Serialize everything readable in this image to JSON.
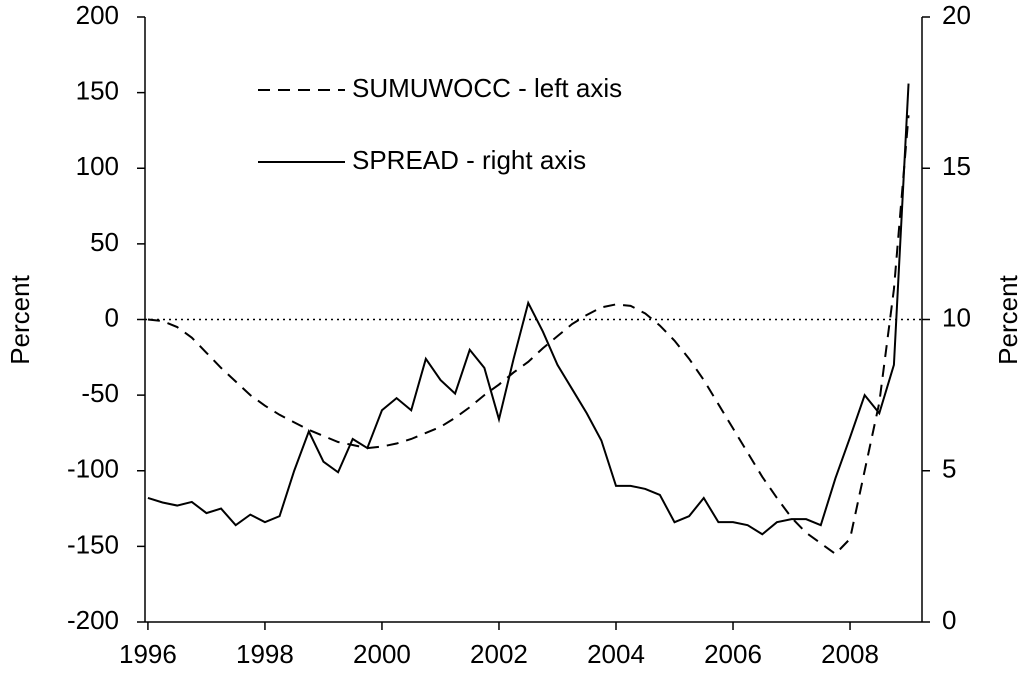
{
  "chart_data": {
    "type": "line",
    "x": [
      1996,
      1996.25,
      1996.5,
      1996.75,
      1997,
      1997.25,
      1997.5,
      1997.75,
      1998,
      1998.25,
      1998.5,
      1998.75,
      1999,
      1999.25,
      1999.5,
      1999.75,
      2000,
      2000.25,
      2000.5,
      2000.75,
      2001,
      2001.25,
      2001.5,
      2001.75,
      2002,
      2002.25,
      2002.5,
      2002.75,
      2003,
      2003.25,
      2003.5,
      2003.75,
      2004,
      2004.25,
      2004.5,
      2004.75,
      2005,
      2005.25,
      2005.5,
      2005.75,
      2006,
      2006.25,
      2006.5,
      2006.75,
      2007,
      2007.25,
      2007.5,
      2007.75,
      2008,
      2008.25,
      2008.5,
      2008.75,
      2009
    ],
    "series": [
      {
        "name": "SUMUWOCC - left axis",
        "color": "#000000",
        "dash": "12,8",
        "axis": "y",
        "values": [
          0,
          -1,
          -5,
          -12,
          -22,
          -32,
          -41,
          -50,
          -57,
          -63,
          -68,
          -73,
          -77,
          -81,
          -83,
          -85,
          -84,
          -82,
          -79,
          -75,
          -71,
          -65,
          -58,
          -50,
          -43,
          -35,
          -28,
          -19,
          -11,
          -3,
          3,
          8,
          10,
          9,
          4,
          -4,
          -14,
          -26,
          -40,
          -56,
          -72,
          -88,
          -104,
          -118,
          -131,
          -141,
          -148,
          -155,
          -145,
          -100,
          -55,
          20,
          135
        ]
      },
      {
        "name": "SPREAD - right axis",
        "color": "#000000",
        "axis": "y2",
        "values": [
          4.1,
          3.95,
          3.85,
          3.97,
          3.6,
          3.75,
          3.2,
          3.55,
          3.3,
          3.5,
          5.0,
          6.3,
          5.3,
          4.95,
          6.05,
          5.75,
          7.0,
          7.4,
          7.0,
          8.7,
          8.0,
          7.55,
          9.0,
          8.4,
          6.7,
          8.7,
          10.55,
          9.6,
          8.5,
          7.7,
          6.9,
          6.0,
          4.5,
          4.5,
          4.4,
          4.2,
          3.3,
          3.5,
          4.1,
          3.3,
          3.3,
          3.2,
          2.9,
          3.3,
          3.4,
          3.4,
          3.2,
          4.75,
          6.1,
          7.5,
          6.9,
          8.5,
          17.8
        ]
      }
    ],
    "xlim": [
      1995.95,
      2009.23
    ],
    "xticks": [
      1996,
      1998,
      2000,
      2002,
      2004,
      2006,
      2008
    ],
    "ylim": [
      -200,
      200
    ],
    "yticks": [
      -200,
      -150,
      -100,
      -50,
      0,
      50,
      100,
      150,
      200
    ],
    "y2lim": [
      0,
      20
    ],
    "y2ticks": [
      0,
      5,
      10,
      15,
      20
    ],
    "ylabel": "Percent",
    "y2label": "Percent"
  }
}
